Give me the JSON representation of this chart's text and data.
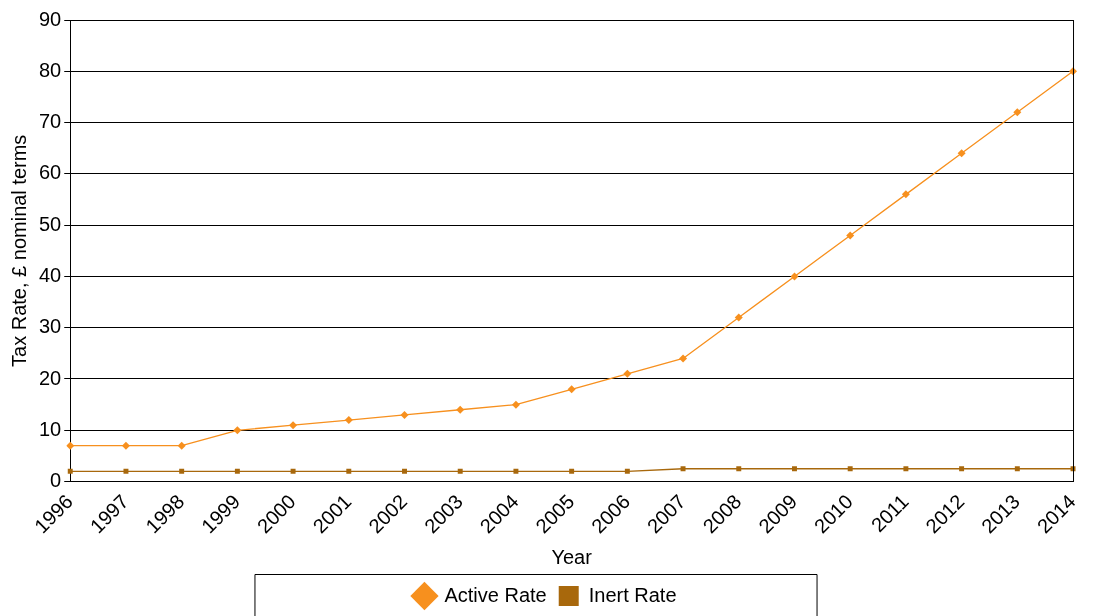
{
  "chart_data": {
    "type": "line",
    "xlabel": "Year",
    "ylabel": "Tax Rate, £ nominal terms",
    "categories": [
      "1996",
      "1997",
      "1998",
      "1999",
      "2000",
      "2001",
      "2002",
      "2003",
      "2004",
      "2005",
      "2006",
      "2007",
      "2008",
      "2009",
      "2010",
      "2011",
      "2012",
      "2013",
      "2014"
    ],
    "series": [
      {
        "name": "Active Rate",
        "color": "#f7901e",
        "marker": "diamond",
        "values": [
          7,
          7,
          7,
          10,
          11,
          12,
          13,
          14,
          15,
          18,
          21,
          24,
          32,
          40,
          48,
          56,
          64,
          72,
          80
        ]
      },
      {
        "name": "Inert Rate",
        "color": "#a8680c",
        "marker": "square",
        "values": [
          2,
          2,
          2,
          2,
          2,
          2,
          2,
          2,
          2,
          2,
          2,
          2.5,
          2.5,
          2.5,
          2.5,
          2.5,
          2.5,
          2.5,
          2.5
        ]
      }
    ],
    "ylim": [
      0,
      90
    ],
    "yticks": [
      0,
      10,
      20,
      30,
      40,
      50,
      60,
      70,
      80,
      90
    ],
    "grid": "y",
    "legend": "bottom",
    "line_style": "solid"
  }
}
